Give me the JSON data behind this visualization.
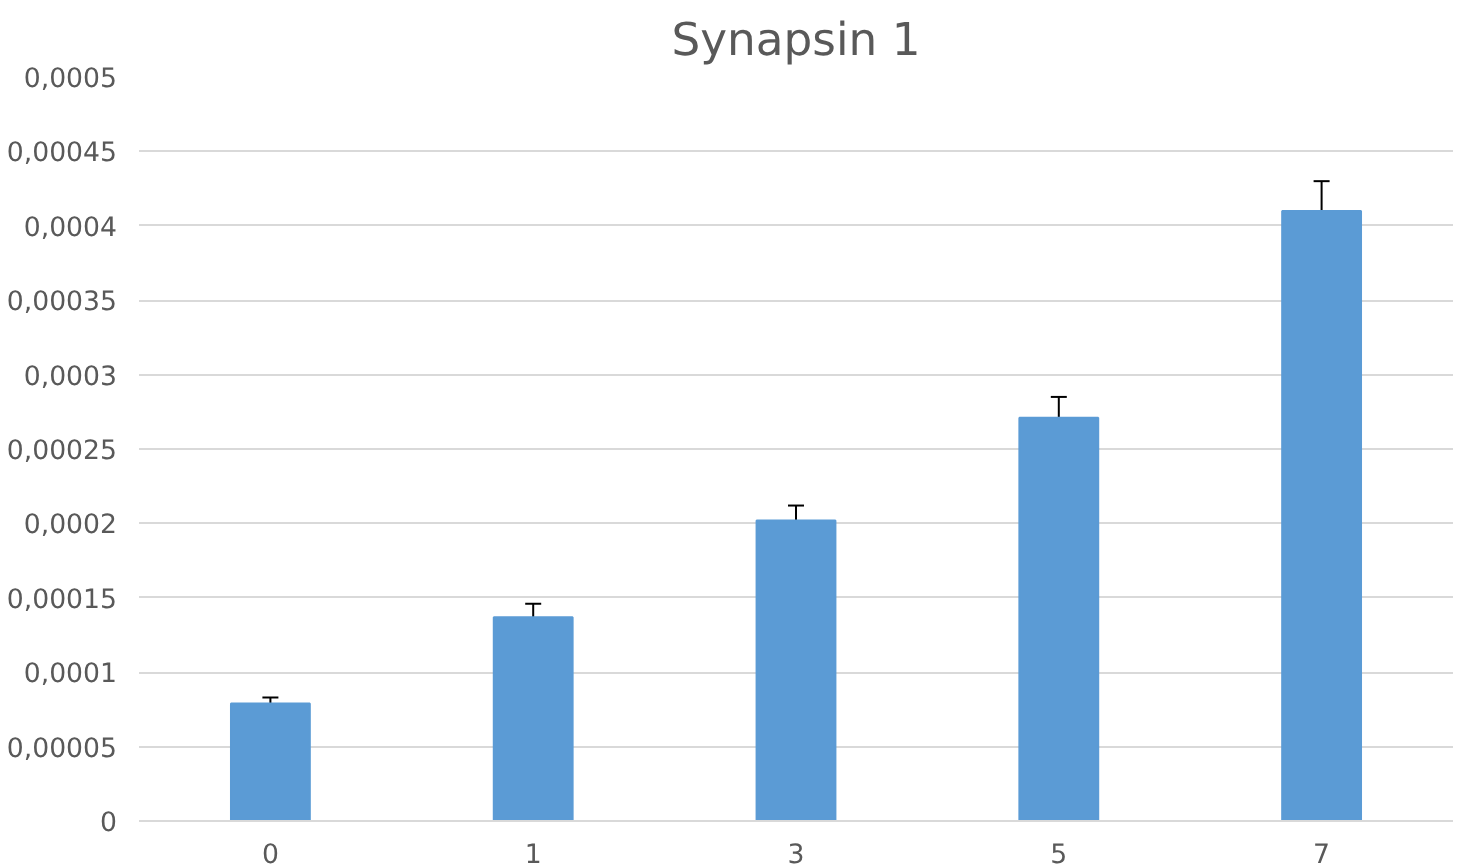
{
  "chart_data": {
    "type": "bar",
    "title": "Synapsin 1",
    "categories": [
      "0",
      "1",
      "3",
      "5",
      "7"
    ],
    "values": [
      7.9e-05,
      0.000137,
      0.000202,
      0.000271,
      0.00041
    ],
    "errors": [
      4e-06,
      9e-06,
      1e-05,
      1.4e-05,
      2e-05
    ],
    "color": "#5b9bd5",
    "ylim": [
      0,
      0.0005
    ],
    "yticks": [
      {
        "value": 0,
        "label": "0"
      },
      {
        "value": 5e-05,
        "label": "0,00005"
      },
      {
        "value": 0.0001,
        "label": "0,0001"
      },
      {
        "value": 0.00015,
        "label": "0,00015"
      },
      {
        "value": 0.0002,
        "label": "0,0002"
      },
      {
        "value": 0.00025,
        "label": "0,00025"
      },
      {
        "value": 0.0003,
        "label": "0,0003"
      },
      {
        "value": 0.00035,
        "label": "0,00035"
      },
      {
        "value": 0.0004,
        "label": "0,0004"
      },
      {
        "value": 0.00045,
        "label": "0,00045"
      },
      {
        "value": 0.0005,
        "label": "0,0005"
      }
    ],
    "grid": "y"
  }
}
